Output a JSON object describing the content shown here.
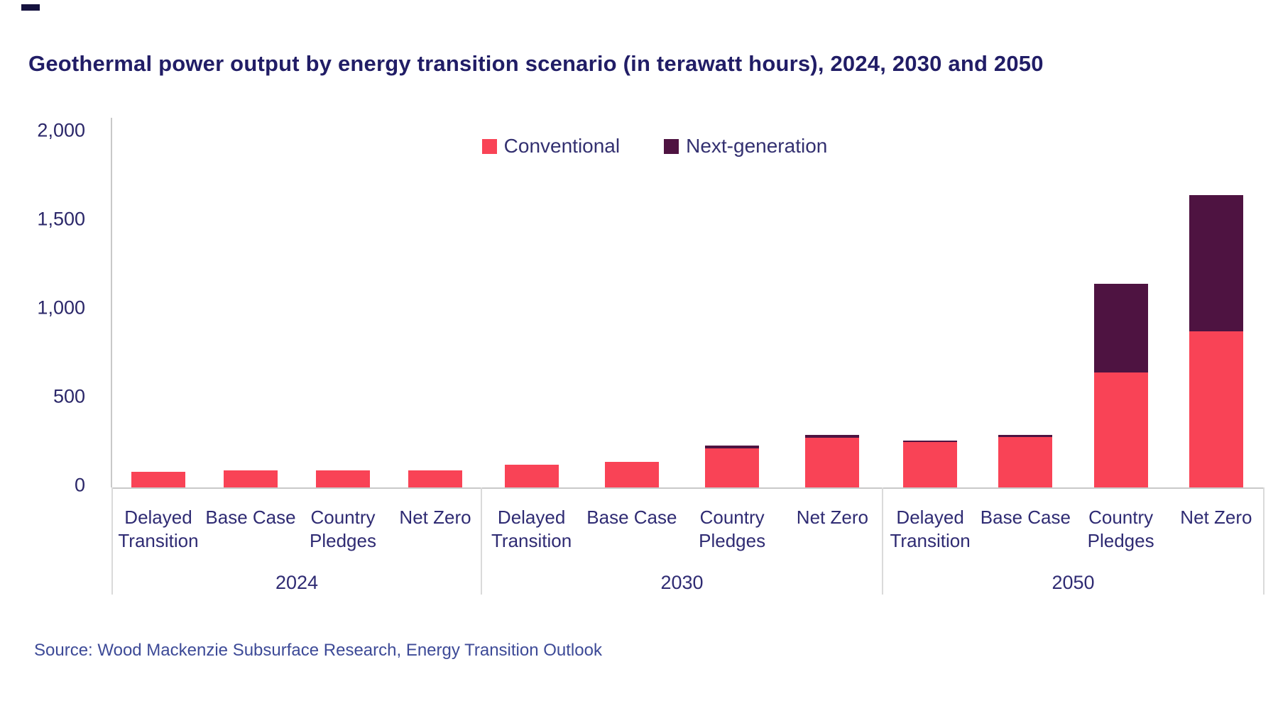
{
  "page": {
    "title": "Geothermal power output by energy transition scenario (in terawatt hours), 2024, 2030 and 2050",
    "source": "Source: Wood Mackenzie Subsurface Research, Energy Transition Outlook"
  },
  "colors": {
    "title_text": "#211D66",
    "axis_text": "#2F2B73",
    "source_text": "#3D4A97",
    "axis_line": "#C9C9C9",
    "separator_line": "#DADADA",
    "conventional": "#F94356",
    "next_generation": "#4E1341",
    "background": "#FFFFFF"
  },
  "legend": {
    "items": [
      {
        "label": "Conventional",
        "color": "#F94356"
      },
      {
        "label": "Next-generation",
        "color": "#4E1341"
      }
    ]
  },
  "chart_data": {
    "type": "bar",
    "stacked": true,
    "title": "Geothermal power output by energy transition scenario (in terawatt hours), 2024, 2030 and 2050",
    "unit": "terawatt hours",
    "ylim": [
      0,
      2000
    ],
    "yticks": [
      0,
      500,
      1000,
      1500,
      2000
    ],
    "ytick_labels": [
      "0",
      "500",
      "1,000",
      "1,500",
      "2,000"
    ],
    "grid": false,
    "legend_position": "top-center",
    "group_labels": [
      "2024",
      "2030",
      "2050"
    ],
    "categories": [
      "Delayed Transition",
      "Base Case",
      "Country Pledges",
      "Net Zero",
      "Delayed Transition",
      "Base Case",
      "Country Pledges",
      "Net Zero",
      "Delayed Transition",
      "Base Case",
      "Country Pledges",
      "Net Zero"
    ],
    "category_lines": [
      [
        "Delayed",
        "Transition"
      ],
      [
        "Base Case"
      ],
      [
        "Country",
        "Pledges"
      ],
      [
        "Net Zero"
      ],
      [
        "Delayed",
        "Transition"
      ],
      [
        "Base Case"
      ],
      [
        "Country",
        "Pledges"
      ],
      [
        "Net Zero"
      ],
      [
        "Delayed",
        "Transition"
      ],
      [
        "Base Case"
      ],
      [
        "Country",
        "Pledges"
      ],
      [
        "Net Zero"
      ]
    ],
    "series": [
      {
        "name": "Conventional",
        "color": "#F94356",
        "values": [
          90,
          97,
          97,
          97,
          130,
          145,
          220,
          280,
          255,
          285,
          650,
          880
        ]
      },
      {
        "name": "Next-generation",
        "color": "#4E1341",
        "values": [
          0,
          0,
          0,
          0,
          0,
          0,
          15,
          15,
          10,
          10,
          500,
          770
        ]
      }
    ]
  }
}
